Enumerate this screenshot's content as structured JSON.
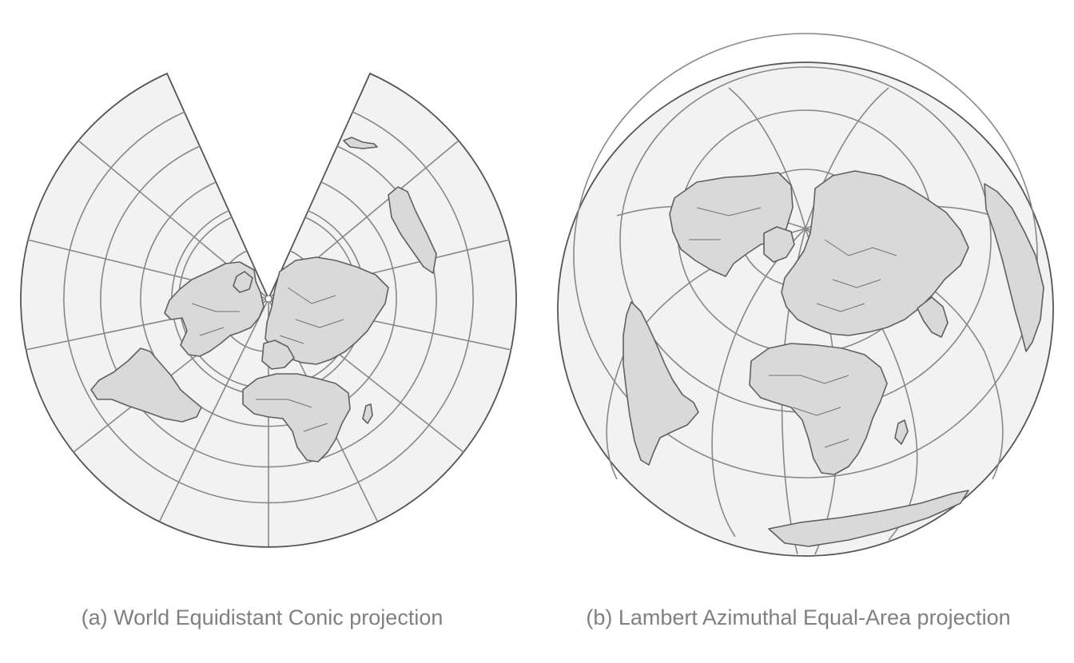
{
  "panels": [
    {
      "caption": "(a) World Equidistant Conic projection",
      "projection": "world-equidistant-conic"
    },
    {
      "caption": "(b) Lambert Azimuthal Equal-Area projection",
      "projection": "lambert-azimuthal-equal-area"
    }
  ],
  "colors": {
    "ocean": "#f2f2f2",
    "land": "#d9d9d9",
    "outline": "#555555",
    "graticule": "#888888",
    "caption": "#808080"
  }
}
